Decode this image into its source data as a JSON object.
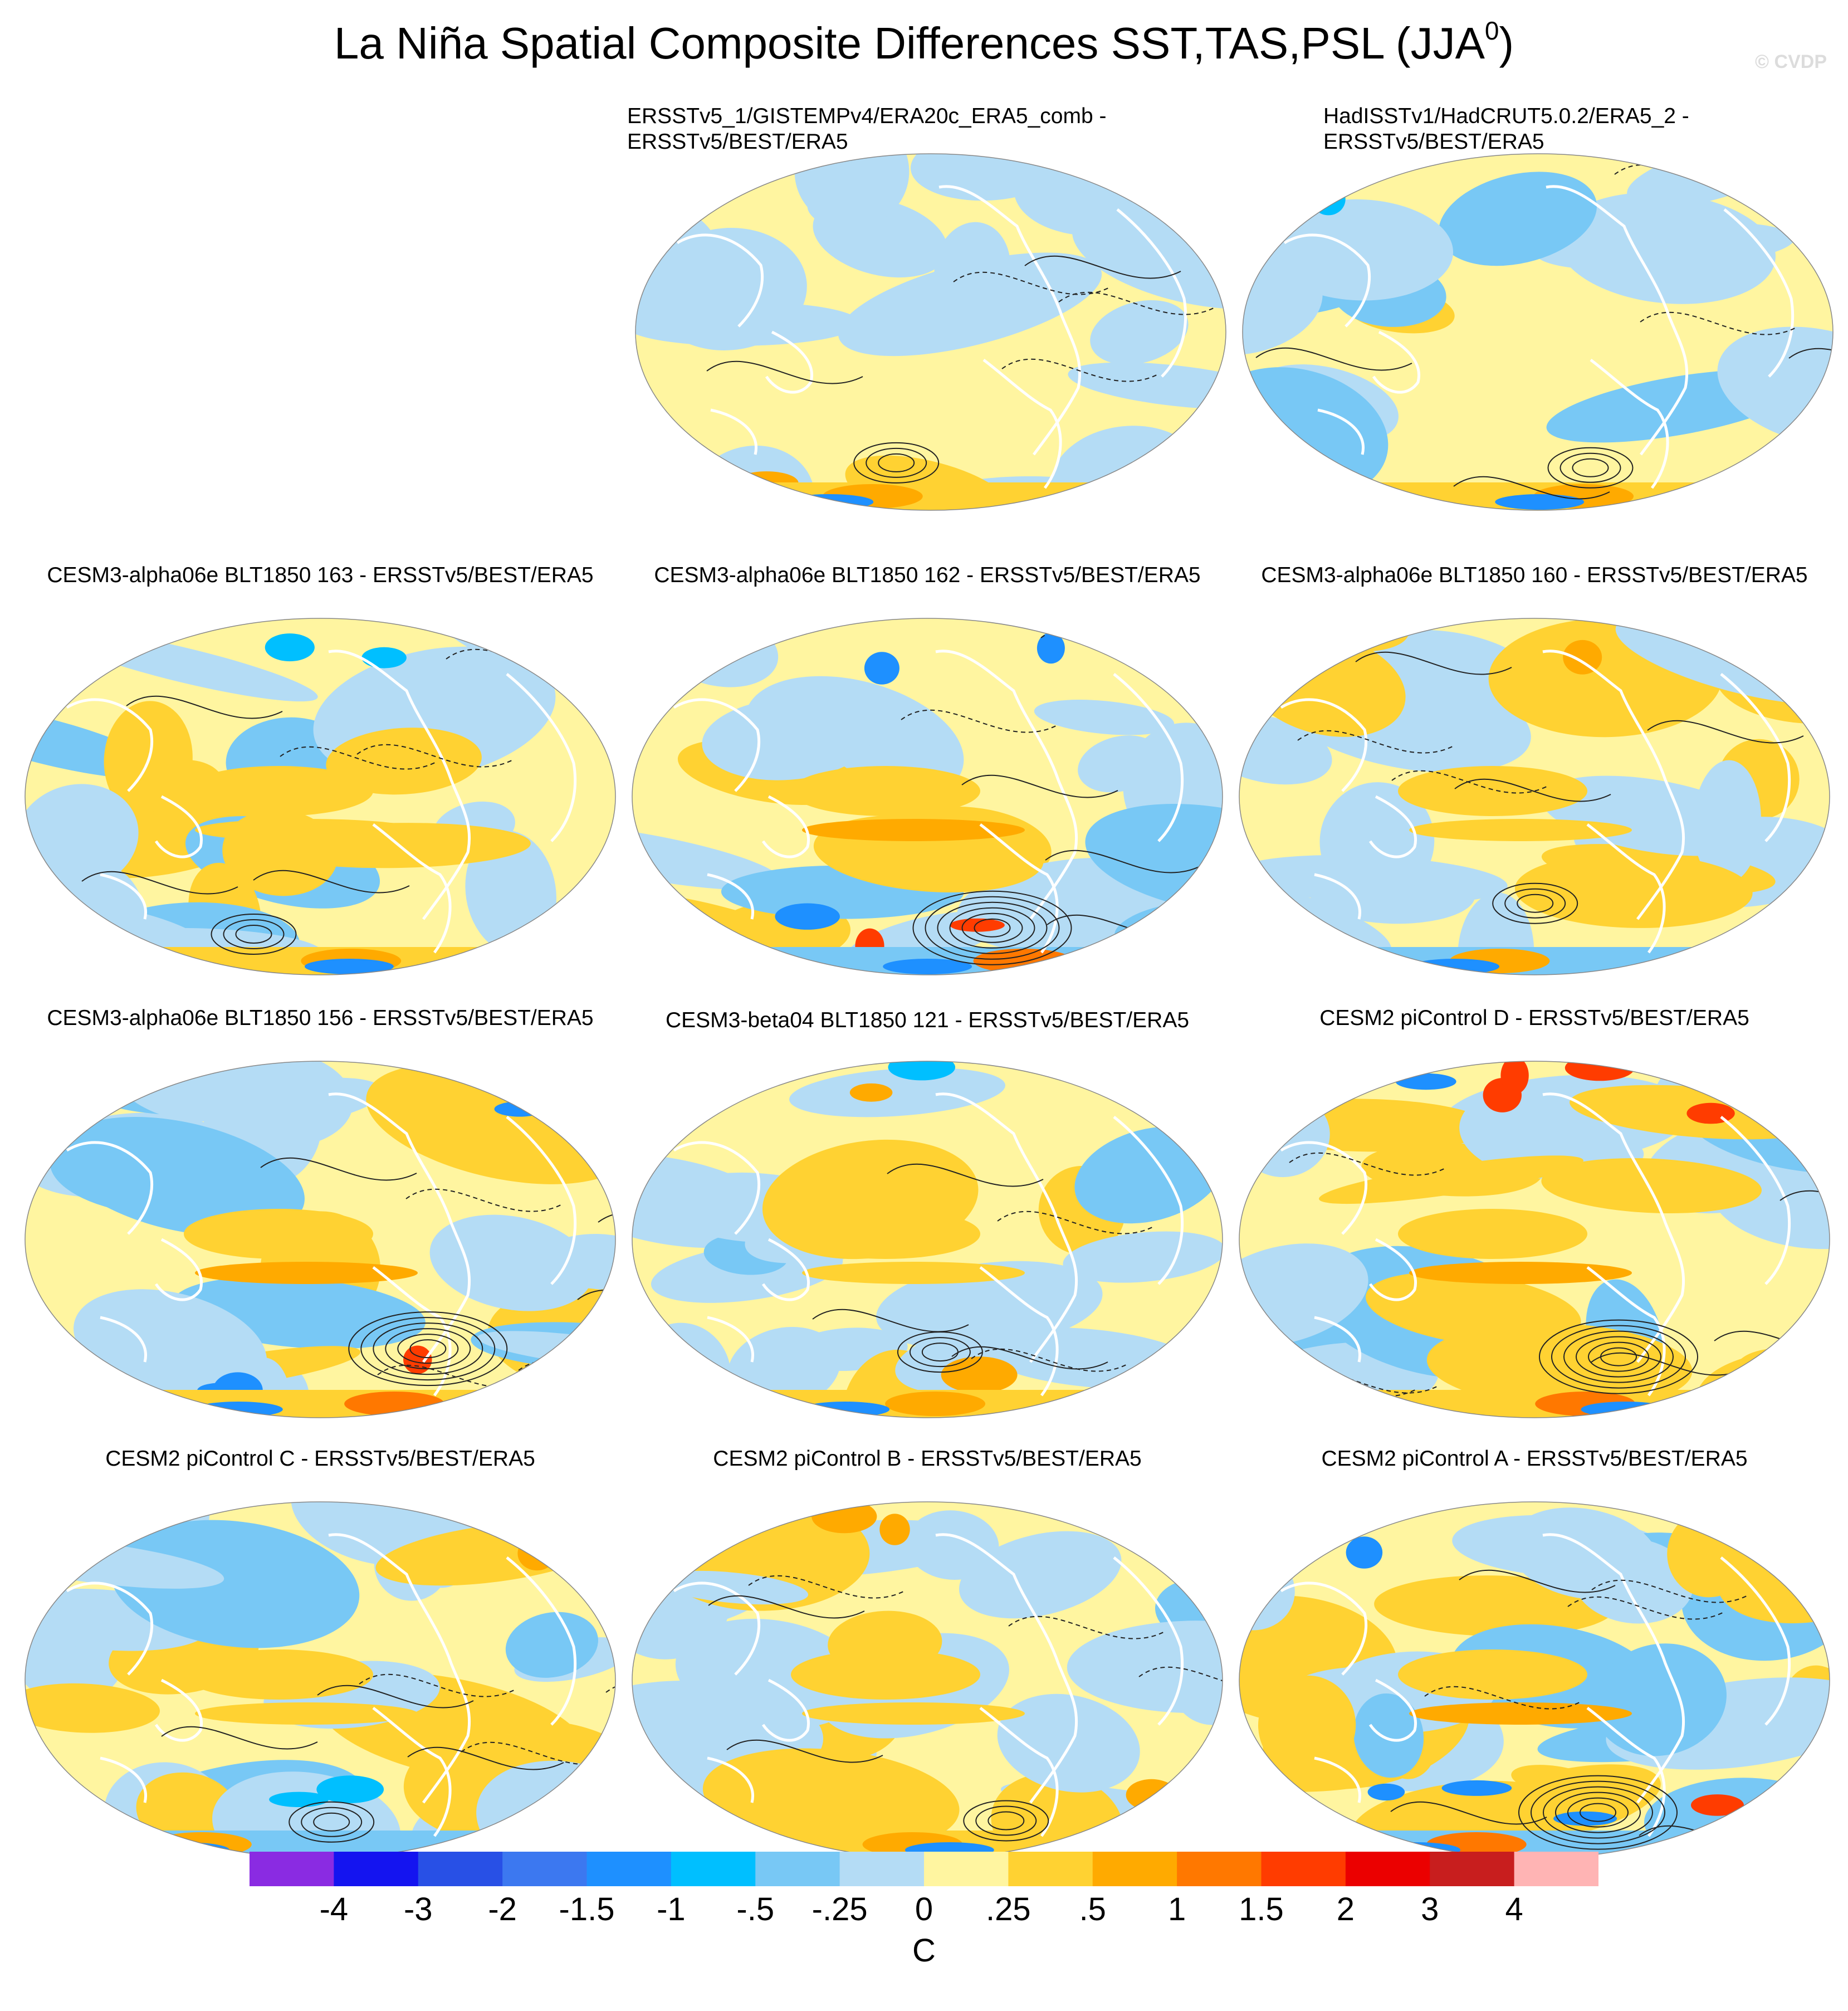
{
  "title": "La Niña Spatial Composite Differences SST,TAS,PSL (JJA",
  "title_superscript": "0",
  "title_close": ")",
  "watermark": "© CVDP",
  "panels": [
    {
      "id": "p01",
      "title_line1": "ERSSTv5_1/GISTEMPv4/ERA20c_ERA5_comb -",
      "title_line2": "ERSSTv5/BEST/ERA5",
      "pattern": "obs-a"
    },
    {
      "id": "p02",
      "title_line1": "HadISSTv1/HadCRUT5.0.2/ERA5_2 -",
      "title_line2": "ERSSTv5/BEST/ERA5",
      "pattern": "obs-b"
    },
    {
      "id": "p03",
      "title_line1": "CESM3-alpha06e BLT1850 163 - ERSSTv5/BEST/ERA5",
      "title_line2": "",
      "pattern": "model"
    },
    {
      "id": "p04",
      "title_line1": "CESM3-alpha06e BLT1850 162 - ERSSTv5/BEST/ERA5",
      "title_line2": "",
      "pattern": "model-strong"
    },
    {
      "id": "p05",
      "title_line1": "CESM3-alpha06e BLT1850 160 - ERSSTv5/BEST/ERA5",
      "title_line2": "",
      "pattern": "model"
    },
    {
      "id": "p06",
      "title_line1": "CESM3-alpha06e BLT1850 156 - ERSSTv5/BEST/ERA5",
      "title_line2": "",
      "pattern": "model-strong"
    },
    {
      "id": "p07",
      "title_line1": "CESM3-beta04 BLT1850 121 - ERSSTv5/BEST/ERA5",
      "title_line2": "",
      "pattern": "model"
    },
    {
      "id": "p08",
      "title_line1": "CESM2 piControl D - ERSSTv5/BEST/ERA5",
      "title_line2": "",
      "pattern": "model-strong"
    },
    {
      "id": "p09",
      "title_line1": "CESM2 piControl C - ERSSTv5/BEST/ERA5",
      "title_line2": "",
      "pattern": "model"
    },
    {
      "id": "p10",
      "title_line1": "CESM2 piControl B - ERSSTv5/BEST/ERA5",
      "title_line2": "",
      "pattern": "model"
    },
    {
      "id": "p11",
      "title_line1": "CESM2 piControl A - ERSSTv5/BEST/ERA5",
      "title_line2": "",
      "pattern": "model-strong"
    }
  ],
  "colorbar": {
    "units": "C",
    "colors": [
      "#8a2be2",
      "#1414f0",
      "#2850e6",
      "#3c78f0",
      "#1e90ff",
      "#00bfff",
      "#78c8f5",
      "#b4dcf5",
      "#fff5a0",
      "#ffd232",
      "#ffaa00",
      "#ff7800",
      "#ff3c00",
      "#eb0000",
      "#c81e1e",
      "#ffb4b4"
    ],
    "tick_labels": [
      "-4",
      "-3",
      "-2",
      "-1.5",
      "-1",
      "-.5",
      "-.25",
      "0",
      ".25",
      ".5",
      "1",
      "1.5",
      "2",
      "3",
      "4"
    ]
  }
}
